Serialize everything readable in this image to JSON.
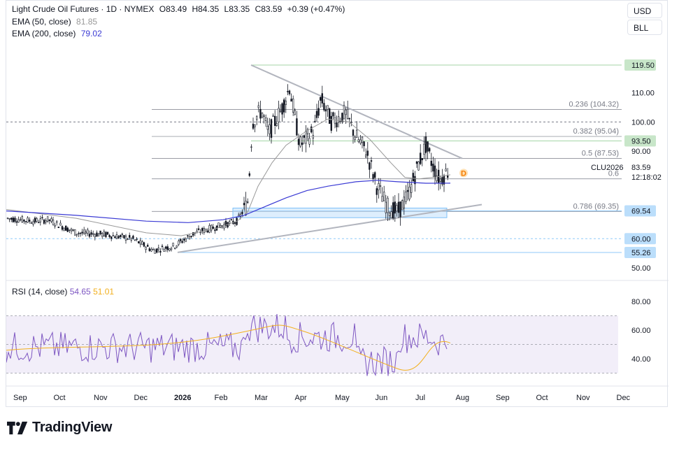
{
  "header": {
    "symbol": "Light Crude Oil Futures · 1D · NYMEX",
    "open": "O83.49",
    "high": "H84.35",
    "low": "L83.35",
    "close": "C83.59",
    "change": "+0.39 (+0.47%)",
    "ema50_label": "EMA (50, close)",
    "ema50_value": "81.85",
    "ema200_label": "EMA (200, close)",
    "ema200_value": "79.02"
  },
  "buttons": {
    "currency": "USD",
    "unit": "BLL"
  },
  "rsi": {
    "label": "RSI (14, close)",
    "value": "54.65",
    "ma_value": "51.01"
  },
  "colors": {
    "up": "#131722",
    "ema50": "#999999",
    "ema200": "#3a3ad4",
    "rsi": "#7e57c2",
    "rsi_ma": "#f2b01e",
    "green_label": "#c8e6c9",
    "blue_label": "#bbdefb"
  },
  "chart_data": {
    "type": "candlestick",
    "instrument": "Light Crude Oil Futures",
    "timeframe": "1D",
    "x_ticks": [
      "Sep",
      "Oct",
      "Nov",
      "Dec",
      "2026",
      "Feb",
      "Mar",
      "Apr",
      "May",
      "Jun",
      "Jul",
      "Aug",
      "Sep",
      "Oct",
      "Nov",
      "Dec"
    ],
    "price_ticks": [
      "110.00",
      "90.00",
      "50.00"
    ],
    "ylim": [
      45,
      125
    ],
    "last_price": {
      "value": "83.59",
      "symbol": "CLU2026",
      "countdown": "12:18:02"
    },
    "levels": [
      {
        "value": 119.5,
        "label": "119.50",
        "style": "green"
      },
      {
        "value": 100.0,
        "label": "100.00",
        "style": "dashed"
      },
      {
        "value": 93.5,
        "label": "93.50",
        "style": "green"
      },
      {
        "value": 69.54,
        "label": "69.54",
        "style": "blue-solid"
      },
      {
        "value": 60.0,
        "label": "60.00",
        "style": "blue-dashed"
      },
      {
        "value": 55.26,
        "label": "55.26",
        "style": "blue"
      }
    ],
    "fibonacci": [
      {
        "ratio": "0.236 (104.32)",
        "price": 104.32
      },
      {
        "ratio": "0.382 (95.04)",
        "price": 95.04
      },
      {
        "ratio": "0.5 (87.53)",
        "price": 87.53
      },
      {
        "ratio": "0.6",
        "price": 80.5
      },
      {
        "ratio": "0.786 (69.35)",
        "price": 69.35
      }
    ],
    "events": [
      {
        "label": "D",
        "note": "dividend/delivery marker"
      }
    ],
    "rsi": {
      "ticks": [
        "80.00",
        "60.00",
        "40.00"
      ],
      "overbought": 70,
      "oversold": 30,
      "middle": 50,
      "value": 54.65,
      "ma": 51.01
    }
  }
}
